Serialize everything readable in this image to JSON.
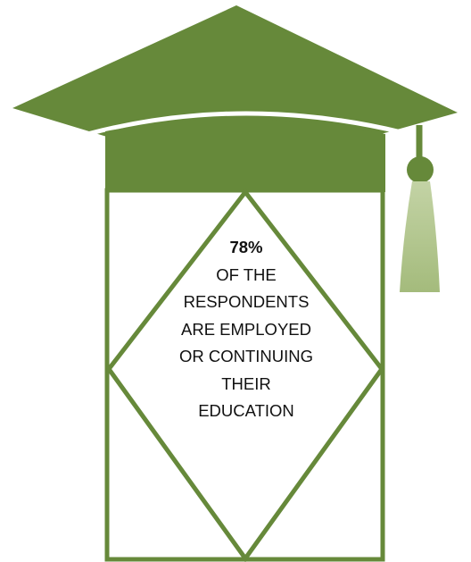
{
  "colors": {
    "primary_green": "#66893a",
    "tassel_light": "#b8cb95",
    "background": "#ffffff",
    "text": "#111111"
  },
  "icon": "graduation-cap-icon",
  "stat": {
    "value": "78%",
    "lines": [
      "OF THE",
      "RESPONDENTS",
      "ARE EMPLOYED",
      "OR CONTINUING",
      "THEIR",
      "EDUCATION"
    ]
  }
}
